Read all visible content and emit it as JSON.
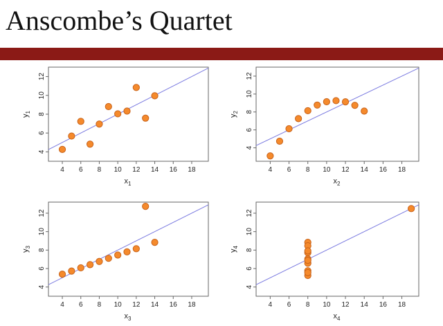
{
  "slide": {
    "title": "Anscombe’s Quartet",
    "bar_color": "#8b1a16"
  },
  "style": {
    "point_fill": "#f58a2c",
    "point_stroke": "#c7621a",
    "line_color": "#7a7ae0",
    "frame_color": "#666666"
  },
  "chart_data": [
    {
      "type": "scatter",
      "title": "",
      "xlabel": "x",
      "xlabel_sub": "1",
      "ylabel": "y",
      "ylabel_sub": "1",
      "xlim": [
        2.5,
        19.8
      ],
      "ylim": [
        3,
        13
      ],
      "xticks": [
        4,
        6,
        8,
        10,
        12,
        14,
        16,
        18
      ],
      "yticks": [
        4,
        6,
        8,
        10,
        12
      ],
      "x": [
        10,
        8,
        13,
        9,
        11,
        14,
        6,
        4,
        12,
        7,
        5
      ],
      "y": [
        8.04,
        6.95,
        7.58,
        8.81,
        8.33,
        9.96,
        7.24,
        4.26,
        10.84,
        4.82,
        5.68
      ],
      "fit_line": {
        "intercept": 3.0,
        "slope": 0.5
      }
    },
    {
      "type": "scatter",
      "title": "",
      "xlabel": "x",
      "xlabel_sub": "2",
      "ylabel": "y",
      "ylabel_sub": "2",
      "xlim": [
        2.5,
        19.8
      ],
      "ylim": [
        2.5,
        13
      ],
      "xticks": [
        4,
        6,
        8,
        10,
        12,
        14,
        16,
        18
      ],
      "yticks": [
        4,
        6,
        8,
        10,
        12
      ],
      "x": [
        10,
        8,
        13,
        9,
        11,
        14,
        6,
        4,
        12,
        7,
        5
      ],
      "y": [
        9.14,
        8.14,
        8.74,
        8.77,
        9.26,
        8.1,
        6.13,
        3.1,
        9.13,
        7.26,
        4.74
      ],
      "fit_line": {
        "intercept": 3.0,
        "slope": 0.5
      }
    },
    {
      "type": "scatter",
      "title": "",
      "xlabel": "x",
      "xlabel_sub": "3",
      "ylabel": "y",
      "ylabel_sub": "3",
      "xlim": [
        2.5,
        19.8
      ],
      "ylim": [
        3,
        13.2
      ],
      "xticks": [
        4,
        6,
        8,
        10,
        12,
        14,
        16,
        18
      ],
      "yticks": [
        4,
        6,
        8,
        10,
        12
      ],
      "x": [
        10,
        8,
        13,
        9,
        11,
        14,
        6,
        4,
        12,
        7,
        5
      ],
      "y": [
        7.46,
        6.77,
        12.74,
        7.11,
        7.81,
        8.84,
        6.08,
        5.39,
        8.15,
        6.42,
        5.73
      ],
      "fit_line": {
        "intercept": 3.0,
        "slope": 0.5
      }
    },
    {
      "type": "scatter",
      "title": "",
      "xlabel": "x",
      "xlabel_sub": "4",
      "ylabel": "y",
      "ylabel_sub": "4",
      "xlim": [
        2.5,
        19.8
      ],
      "ylim": [
        3,
        13.2
      ],
      "xticks": [
        4,
        6,
        8,
        10,
        12,
        14,
        16,
        18
      ],
      "yticks": [
        4,
        6,
        8,
        10,
        12
      ],
      "x": [
        8,
        8,
        8,
        8,
        8,
        8,
        8,
        19,
        8,
        8,
        8
      ],
      "y": [
        6.58,
        5.76,
        7.71,
        8.84,
        8.47,
        7.04,
        5.25,
        12.5,
        5.56,
        7.91,
        6.89
      ],
      "fit_line": {
        "intercept": 3.0,
        "slope": 0.5
      }
    }
  ]
}
